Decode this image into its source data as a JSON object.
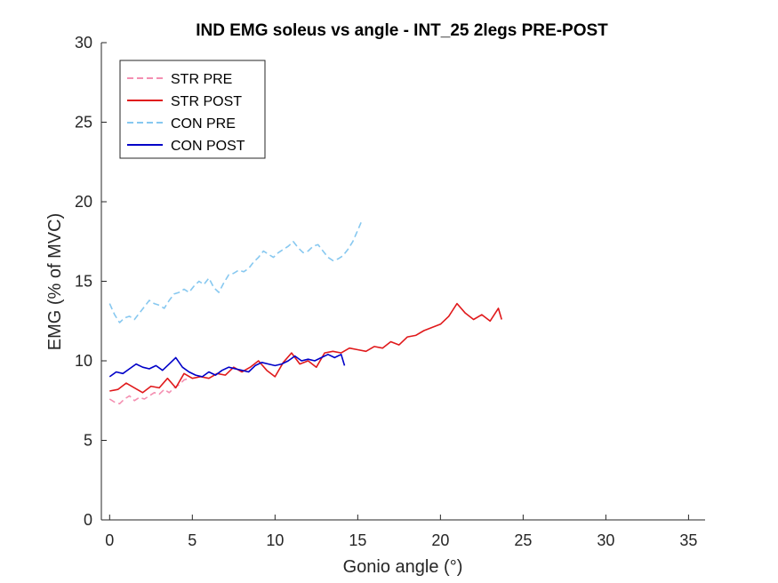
{
  "chart_data": {
    "type": "line",
    "title": "IND EMG soleus vs angle - INT_25 2legs PRE-POST",
    "xlabel": "Gonio angle (°)",
    "ylabel": "EMG (% of MVC)",
    "xlim": [
      -0.5,
      36
    ],
    "ylim": [
      0,
      30
    ],
    "xticks": [
      0,
      5,
      10,
      15,
      20,
      25,
      30,
      35
    ],
    "yticks": [
      0,
      5,
      10,
      15,
      20,
      25,
      30
    ],
    "grid": false,
    "legend_position": "top-left",
    "series": [
      {
        "name": "STR PRE",
        "color": "#f48fb1",
        "dash": "dashed",
        "x": [
          0,
          0.3,
          0.6,
          0.9,
          1.2,
          1.5,
          1.8,
          2.1,
          2.4,
          2.7,
          3.0,
          3.3,
          3.6,
          3.9,
          4.2,
          4.5,
          4.8
        ],
        "y": [
          7.6,
          7.4,
          7.3,
          7.6,
          7.8,
          7.5,
          7.7,
          7.6,
          7.8,
          8.0,
          7.9,
          8.2,
          8.0,
          8.3,
          8.5,
          8.8,
          8.9
        ]
      },
      {
        "name": "STR POST",
        "color": "#e0191b",
        "dash": "solid",
        "x": [
          0,
          0.5,
          1.0,
          1.5,
          2.0,
          2.5,
          3.0,
          3.5,
          4.0,
          4.5,
          5.0,
          5.5,
          6.0,
          6.5,
          7.0,
          7.5,
          8.0,
          8.5,
          9.0,
          9.5,
          10.0,
          10.5,
          11.0,
          11.5,
          12.0,
          12.5,
          13.0,
          13.5,
          14.0,
          14.5,
          15.0,
          15.5,
          16.0,
          16.5,
          17.0,
          17.5,
          18.0,
          18.5,
          19.0,
          19.5,
          20.0,
          20.5,
          21.0,
          21.5,
          22.0,
          22.5,
          23.0,
          23.5,
          23.7
        ],
        "y": [
          8.1,
          8.2,
          8.6,
          8.3,
          8.0,
          8.4,
          8.3,
          8.9,
          8.3,
          9.2,
          8.9,
          9.0,
          8.9,
          9.2,
          9.1,
          9.6,
          9.3,
          9.6,
          10.0,
          9.4,
          9.0,
          9.9,
          10.5,
          9.8,
          10.0,
          9.6,
          10.5,
          10.6,
          10.5,
          10.8,
          10.7,
          10.6,
          10.9,
          10.8,
          11.2,
          11.0,
          11.5,
          11.6,
          11.9,
          12.1,
          12.3,
          12.8,
          13.6,
          13.0,
          12.6,
          12.9,
          12.5,
          13.3,
          12.6
        ]
      },
      {
        "name": "CON PRE",
        "color": "#87c8f0",
        "dash": "dashed",
        "x": [
          0,
          0.3,
          0.6,
          0.9,
          1.2,
          1.5,
          1.8,
          2.1,
          2.4,
          2.7,
          3.0,
          3.3,
          3.6,
          3.9,
          4.2,
          4.5,
          4.8,
          5.1,
          5.4,
          5.7,
          6.0,
          6.3,
          6.6,
          6.9,
          7.2,
          7.5,
          7.8,
          8.1,
          8.4,
          8.7,
          9.0,
          9.3,
          9.6,
          9.9,
          10.2,
          10.5,
          10.8,
          11.1,
          11.4,
          11.7,
          12.0,
          12.3,
          12.6,
          12.9,
          13.2,
          13.5,
          13.8,
          14.1,
          14.4,
          14.7,
          15.0,
          15.2
        ],
        "y": [
          13.6,
          12.9,
          12.4,
          12.7,
          12.8,
          12.6,
          13.0,
          13.4,
          13.8,
          13.6,
          13.5,
          13.3,
          13.8,
          14.2,
          14.3,
          14.5,
          14.3,
          14.7,
          15.0,
          14.8,
          15.2,
          14.6,
          14.3,
          14.9,
          15.4,
          15.5,
          15.7,
          15.6,
          15.8,
          16.2,
          16.5,
          16.9,
          16.7,
          16.5,
          16.8,
          17.0,
          17.2,
          17.5,
          17.1,
          16.8,
          16.9,
          17.2,
          17.3,
          16.9,
          16.5,
          16.3,
          16.4,
          16.6,
          17.0,
          17.5,
          18.2,
          18.7
        ]
      },
      {
        "name": "CON POST",
        "color": "#0000c8",
        "dash": "solid",
        "x": [
          0,
          0.4,
          0.8,
          1.2,
          1.6,
          2.0,
          2.4,
          2.8,
          3.2,
          3.6,
          4.0,
          4.4,
          4.8,
          5.2,
          5.6,
          6.0,
          6.4,
          6.8,
          7.2,
          7.6,
          8.0,
          8.4,
          8.8,
          9.2,
          9.6,
          10.0,
          10.4,
          10.8,
          11.2,
          11.6,
          12.0,
          12.4,
          12.8,
          13.2,
          13.6,
          14.0,
          14.2
        ],
        "y": [
          9.0,
          9.3,
          9.2,
          9.5,
          9.8,
          9.6,
          9.5,
          9.7,
          9.4,
          9.8,
          10.2,
          9.6,
          9.3,
          9.1,
          9.0,
          9.3,
          9.1,
          9.4,
          9.6,
          9.5,
          9.4,
          9.3,
          9.7,
          9.9,
          9.8,
          9.7,
          9.8,
          10.0,
          10.3,
          10.0,
          10.1,
          10.0,
          10.2,
          10.4,
          10.2,
          10.4,
          9.7
        ]
      }
    ]
  }
}
